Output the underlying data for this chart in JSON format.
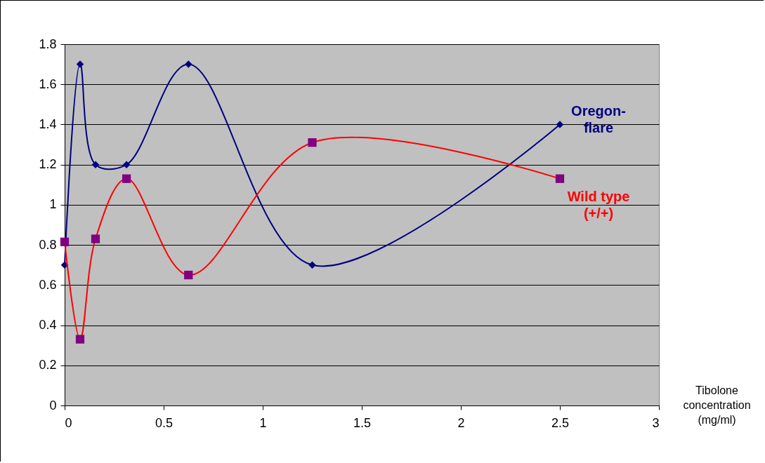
{
  "chart_data": {
    "type": "line",
    "xlabel": "Tibolone concentration (mg/ml)",
    "x": [
      0,
      0.078,
      0.156,
      0.3125,
      0.625,
      1.25,
      2.5
    ],
    "series": [
      {
        "name": "Oregon-flare",
        "color": "#000080",
        "marker": "diamond",
        "values": [
          0.7,
          1.7,
          1.2,
          1.2,
          1.7,
          0.7,
          1.4
        ]
      },
      {
        "name": "Wild type (+/+)",
        "color": "#ff0000",
        "colors": [
          "#800080",
          "#800080",
          "#800080",
          "#800080",
          "#800080",
          "#800080",
          "#800080"
        ],
        "marker": "square",
        "values": [
          0.815,
          0.33,
          0.83,
          1.13,
          0.65,
          1.31,
          1.13
        ]
      }
    ],
    "xlim": [
      0,
      3
    ],
    "xticks": [
      0,
      0.5,
      1,
      1.5,
      2,
      2.5,
      3
    ],
    "ylim": [
      0,
      1.8
    ],
    "yticks": [
      0,
      0.2,
      0.4,
      0.6,
      0.8,
      1,
      1.2,
      1.4,
      1.6,
      1.8
    ],
    "grid": "y"
  }
}
